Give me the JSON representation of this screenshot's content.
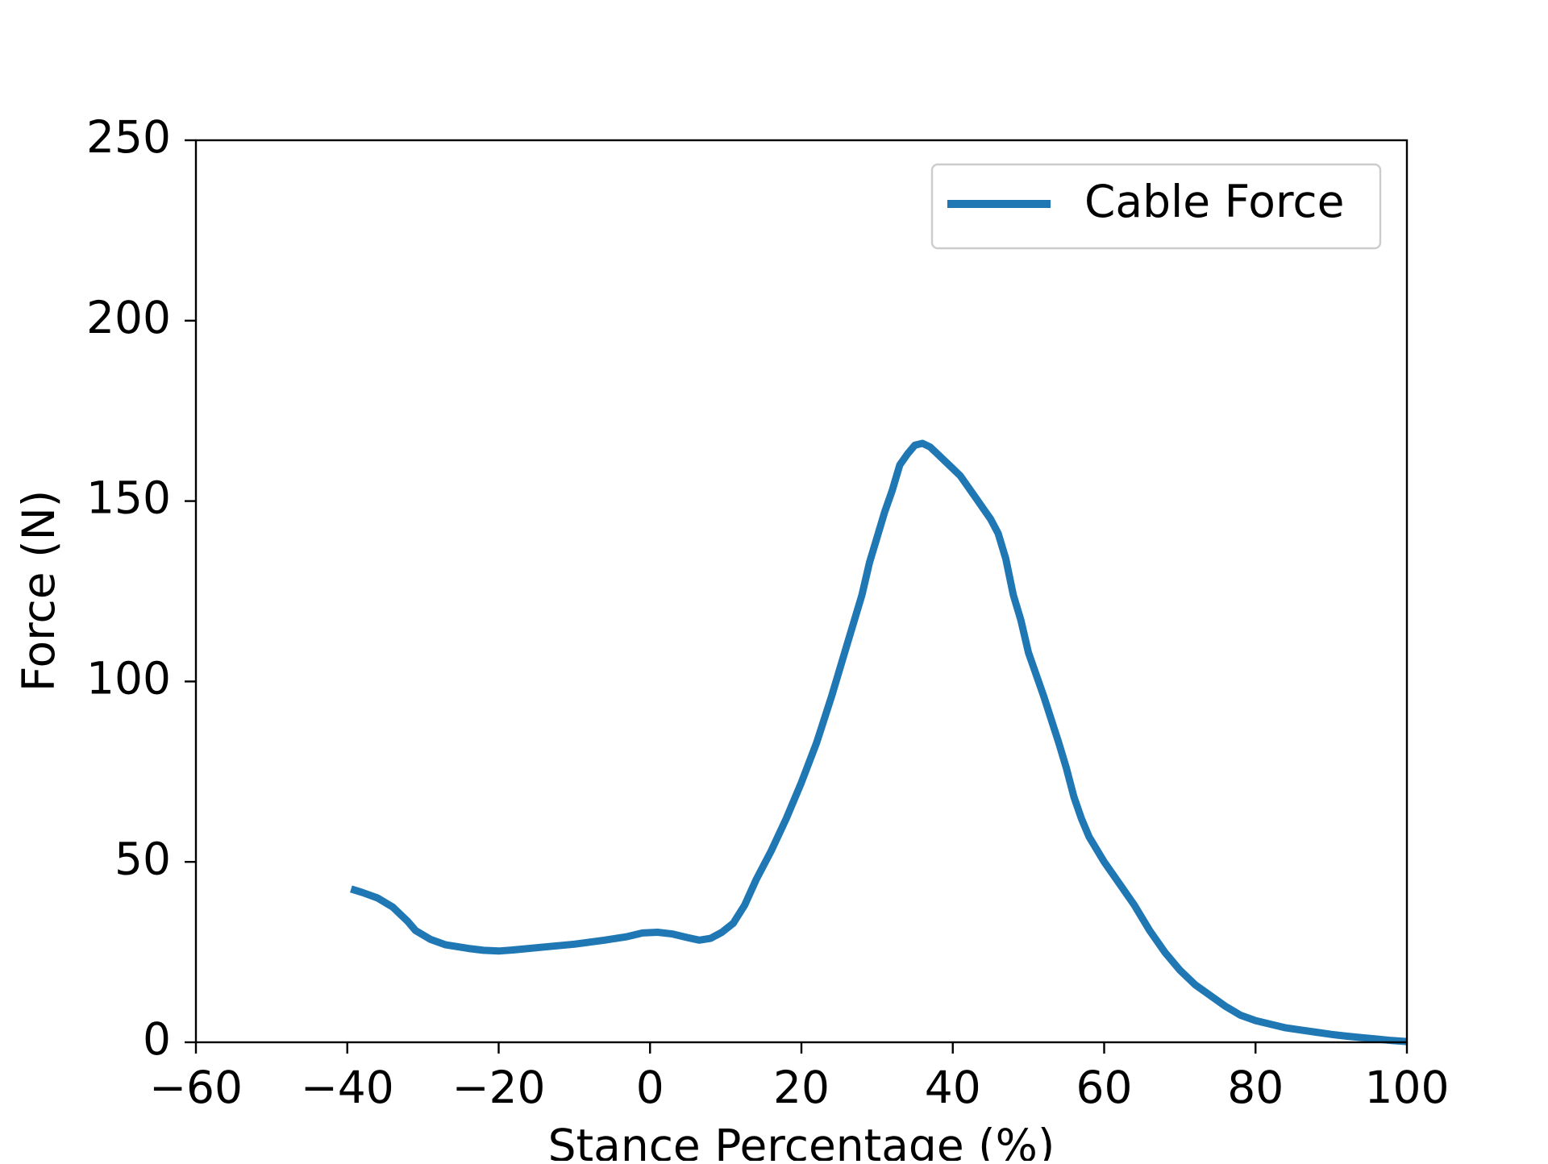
{
  "chart_data": {
    "type": "line",
    "title": "",
    "xlabel": "Stance Percentage (%)",
    "ylabel": "Force (N)",
    "xlim": [
      -60,
      100
    ],
    "ylim": [
      0,
      250
    ],
    "x_ticks": [
      "−60",
      "−40",
      "−20",
      "0",
      "20",
      "40",
      "60",
      "80",
      "100"
    ],
    "y_ticks": [
      "0",
      "50",
      "100",
      "150",
      "200",
      "250"
    ],
    "grid": false,
    "legend_position": "upper right",
    "series": [
      {
        "name": "Cable Force",
        "color": "#1f77b4",
        "points": [
          [
            -39.5,
            42.5
          ],
          [
            -38,
            41.5
          ],
          [
            -36,
            40
          ],
          [
            -34,
            37.5
          ],
          [
            -32,
            33.5
          ],
          [
            -31,
            31
          ],
          [
            -29,
            28.5
          ],
          [
            -27,
            27
          ],
          [
            -24,
            26
          ],
          [
            -22,
            25.5
          ],
          [
            -20,
            25.3
          ],
          [
            -18,
            25.6
          ],
          [
            -14,
            26.4
          ],
          [
            -10,
            27.2
          ],
          [
            -6,
            28.3
          ],
          [
            -3,
            29.3
          ],
          [
            -1,
            30.3
          ],
          [
            1,
            30.5
          ],
          [
            3,
            30
          ],
          [
            5,
            29
          ],
          [
            6.5,
            28.3
          ],
          [
            8,
            28.8
          ],
          [
            9.5,
            30.5
          ],
          [
            11,
            33
          ],
          [
            12.5,
            38
          ],
          [
            14,
            45
          ],
          [
            16,
            53
          ],
          [
            18,
            62
          ],
          [
            20,
            72
          ],
          [
            22,
            83
          ],
          [
            24,
            96
          ],
          [
            26,
            110
          ],
          [
            27,
            117
          ],
          [
            28,
            124
          ],
          [
            29,
            133
          ],
          [
            30,
            140
          ],
          [
            31,
            147
          ],
          [
            32,
            153
          ],
          [
            33,
            160
          ],
          [
            34,
            163
          ],
          [
            35,
            165.5
          ],
          [
            36,
            166
          ],
          [
            37,
            165
          ],
          [
            38,
            163
          ],
          [
            39,
            161
          ],
          [
            40,
            159
          ],
          [
            41,
            157
          ],
          [
            42,
            154
          ],
          [
            43,
            151
          ],
          [
            44,
            148
          ],
          [
            45,
            145
          ],
          [
            46,
            141
          ],
          [
            47,
            134
          ],
          [
            48,
            124
          ],
          [
            49,
            117
          ],
          [
            50,
            108
          ],
          [
            52,
            96
          ],
          [
            54,
            83
          ],
          [
            55,
            76
          ],
          [
            56,
            68
          ],
          [
            57,
            62
          ],
          [
            58,
            57
          ],
          [
            60,
            50
          ],
          [
            62,
            44
          ],
          [
            64,
            38
          ],
          [
            66,
            31
          ],
          [
            68,
            25
          ],
          [
            70,
            20
          ],
          [
            72,
            16
          ],
          [
            74,
            13
          ],
          [
            76,
            10
          ],
          [
            78,
            7.5
          ],
          [
            80,
            6
          ],
          [
            82,
            5
          ],
          [
            84,
            4
          ],
          [
            86,
            3.4
          ],
          [
            88,
            2.8
          ],
          [
            90,
            2.2
          ],
          [
            92,
            1.7
          ],
          [
            94,
            1.3
          ],
          [
            96,
            0.9
          ],
          [
            98,
            0.5
          ],
          [
            100,
            0.2
          ]
        ]
      }
    ]
  }
}
